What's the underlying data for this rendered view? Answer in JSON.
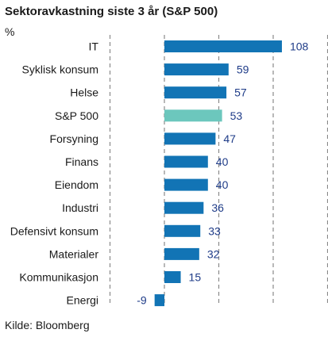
{
  "title": "Sektoravkastning siste 3 år (S&P 500)",
  "unit": "%",
  "source": "Kilde: Bloomberg",
  "colors": {
    "bar": "#1274b5",
    "highlight": "#6cc7bd",
    "value_label": "#1f3c88",
    "gridline": "#8a8a8a"
  },
  "chart_data": {
    "type": "bar",
    "orientation": "horizontal",
    "categories": [
      "IT",
      "Syklisk konsum",
      "Helse",
      "S&P 500",
      "Forsyning",
      "Finans",
      "Eiendom",
      "Industri",
      "Defensivt konsum",
      "Materialer",
      "Kommunikasjon",
      "Energi"
    ],
    "values": [
      108,
      59,
      57,
      53,
      47,
      40,
      40,
      36,
      33,
      32,
      15,
      -9
    ],
    "highlight_category": "S&P 500",
    "xlim": [
      -50,
      150
    ],
    "grid_x": [
      -50,
      0,
      50,
      100,
      150
    ],
    "grid": "vertical dashed",
    "title": "Sektoravkastning siste 3 år (S&P 500)",
    "xlabel": "",
    "ylabel": "%"
  }
}
